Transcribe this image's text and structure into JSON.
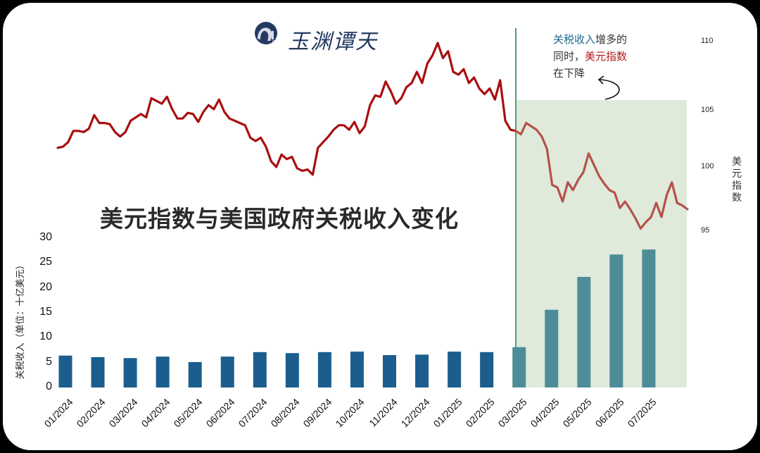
{
  "header": {
    "logo_text": "玉渊谭天",
    "logo_icon": "wave-circle-logo-icon"
  },
  "title": "美元指数与美国政府关税收入变化",
  "annotation": {
    "part1_blue": "关税收入",
    "part2": "增多的",
    "part3": "同时，",
    "part4_red": "美元指数",
    "part5": "在下降",
    "arrow_icon": "curved-arrow-icon"
  },
  "axes": {
    "left_label": "关税收入（单位：十亿美元）",
    "right_label": "美元指数",
    "left_ticks": [
      "0",
      "5",
      "10",
      "15",
      "20",
      "25",
      "30"
    ],
    "right_ticks": [
      "95",
      "100",
      "105",
      "110"
    ]
  },
  "colors": {
    "bar_before": "#1b5e8e",
    "bar_after": "#4e8d97",
    "line_before": "#a80f10",
    "line_after": "#b5524a",
    "shade": "#dfeadb",
    "divider": "#1e7c4e"
  },
  "chart_data": [
    {
      "type": "bar",
      "title": "美元指数与美国政府关税收入变化",
      "ylabel": "关税收入（单位：十亿美元）",
      "ylim": [
        0,
        30
      ],
      "categories": [
        "01/2024",
        "02/2024",
        "03/2024",
        "04/2024",
        "05/2024",
        "06/2024",
        "07/2024",
        "08/2024",
        "09/2024",
        "10/2024",
        "11/2024",
        "12/2024",
        "01/2025",
        "02/2025",
        "03/2025",
        "04/2025",
        "05/2025",
        "06/2025",
        "07/2025"
      ],
      "values": [
        6.4,
        6.1,
        5.9,
        6.2,
        5.1,
        6.2,
        7.1,
        6.9,
        7.1,
        7.2,
        6.5,
        6.6,
        7.2,
        7.1,
        8.1,
        15.6,
        22.2,
        26.7,
        27.7
      ],
      "highlight_from": "03/2025"
    },
    {
      "type": "line",
      "ylabel": "美元指数",
      "ylim": [
        94.5,
        110.5
      ],
      "yticks": [
        95,
        100,
        105,
        110
      ],
      "x_range": [
        "01/2024",
        "07/2025"
      ],
      "series": [
        {
          "name": "美元指数",
          "values": [
            101.7,
            101.8,
            102.2,
            103.2,
            103.2,
            103.1,
            103.4,
            104.6,
            103.9,
            103.9,
            103.8,
            103.1,
            102.7,
            103.1,
            104.1,
            104.4,
            104.7,
            104.4,
            105.9,
            105.7,
            105.5,
            106.0,
            105.1,
            104.3,
            104.3,
            104.8,
            104.7,
            104.0,
            104.9,
            105.4,
            105.1,
            105.8,
            104.9,
            104.3,
            104.1,
            103.9,
            103.7,
            102.6,
            102.3,
            102.6,
            101.8,
            100.5,
            100.0,
            101.1,
            100.7,
            100.9,
            99.9,
            99.7,
            99.8,
            99.4,
            101.7,
            102.2,
            102.7,
            103.3,
            103.7,
            103.7,
            103.3,
            104.0,
            103.0,
            103.6,
            105.4,
            106.1,
            106.0,
            107.1,
            106.4,
            105.5,
            105.9,
            106.7,
            107.0,
            107.8,
            107.0,
            108.4,
            109.0,
            109.9,
            108.8,
            109.3,
            107.8,
            107.6,
            108.0,
            107.0,
            107.4,
            106.6,
            106.2,
            106.6,
            105.8,
            107.2,
            104.1,
            103.3,
            103.2,
            102.9,
            103.9,
            103.6,
            103.3,
            102.7,
            101.6,
            98.6,
            98.4,
            97.3,
            98.8,
            98.2,
            99.0,
            99.6,
            101.2,
            100.2,
            99.3,
            98.7,
            98.2,
            98.0,
            96.8,
            97.3,
            96.7,
            96.0,
            95.2,
            95.7,
            96.1,
            97.2,
            96.1,
            97.8,
            98.8,
            97.2,
            97.0,
            96.7
          ]
        }
      ],
      "annotation": "关税收入增多的同时，美元指数在下降",
      "shaded_from": "03/2025"
    }
  ]
}
